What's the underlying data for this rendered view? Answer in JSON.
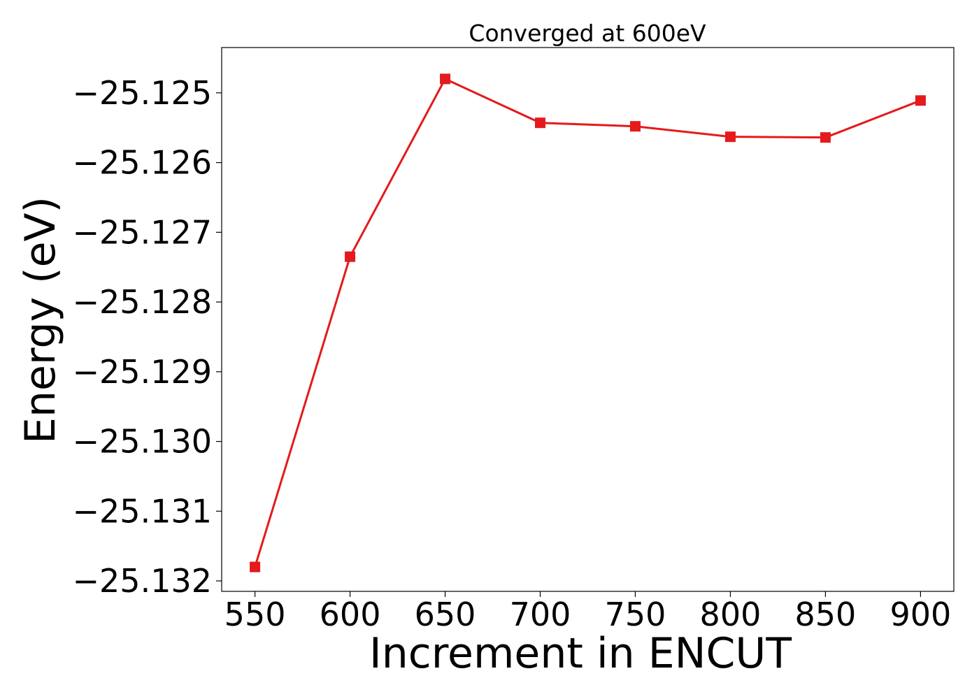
{
  "chart_data": {
    "type": "line",
    "title": "Converged at 600eV",
    "xlabel": "Increment in ENCUT",
    "ylabel": "Energy (eV)",
    "x": [
      550,
      600,
      650,
      700,
      750,
      800,
      850,
      900
    ],
    "series": [
      {
        "values": [
          -25.1318,
          -25.12735,
          -25.1248,
          -25.12543,
          -25.12548,
          -25.12563,
          -25.12564,
          -25.12511
        ],
        "color": "#e41a1c",
        "marker": "square"
      }
    ],
    "xticks": [
      550,
      600,
      650,
      700,
      750,
      800,
      850,
      900
    ],
    "xtick_labels": [
      "550",
      "600",
      "650",
      "700",
      "750",
      "800",
      "850",
      "900"
    ],
    "yticks": [
      -25.132,
      -25.131,
      -25.13,
      -25.129,
      -25.128,
      -25.127,
      -25.126,
      -25.125
    ],
    "ytick_labels": [
      "−25.132",
      "−25.131",
      "−25.130",
      "−25.129",
      "−25.128",
      "−25.127",
      "−25.126",
      "−25.125"
    ],
    "xlim": [
      532.5,
      917.5
    ],
    "ylim": [
      -25.13215,
      -25.12435
    ],
    "grid": false,
    "legend": "none"
  }
}
